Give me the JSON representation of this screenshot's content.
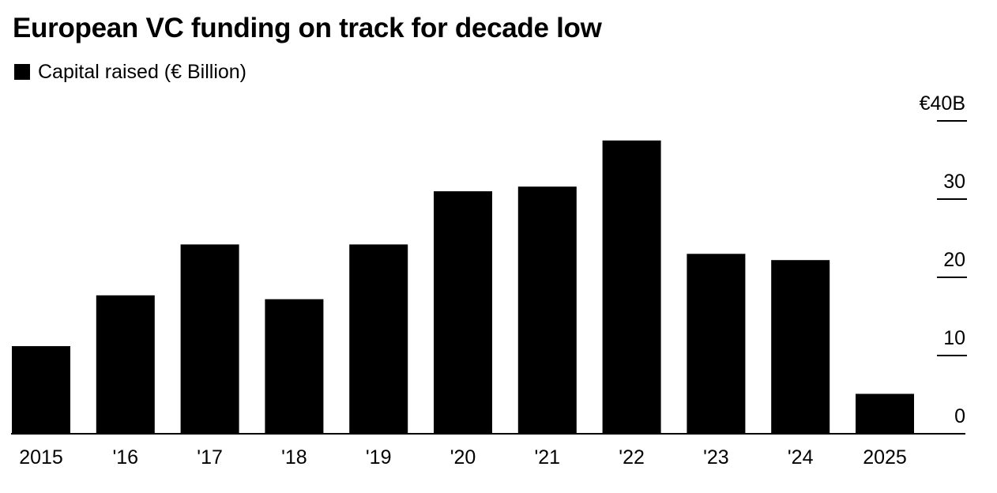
{
  "title": "European VC funding on track for decade low",
  "legend": {
    "label": "Capital raised (€ Billion)",
    "color": "#000000"
  },
  "chart_data": {
    "type": "bar",
    "title": "European VC funding on track for decade low",
    "categories": [
      "2015",
      "'16",
      "'17",
      "'18",
      "'19",
      "'20",
      "'21",
      "'22",
      "'23",
      "'24",
      "2025"
    ],
    "series": [
      {
        "name": "Capital raised (€ Billion)",
        "color": "#000000",
        "values": [
          11.2,
          17.7,
          24.2,
          17.2,
          24.2,
          31.0,
          31.6,
          37.5,
          23.0,
          22.2,
          5.1
        ]
      }
    ],
    "ylim": [
      0,
      40
    ],
    "yticks": [
      0,
      10,
      20,
      30,
      40
    ],
    "ytick_labels": [
      "0",
      "10",
      "20",
      "30",
      "€40B"
    ],
    "y_axis_side": "right",
    "grid": false,
    "legend_position": "top-left"
  }
}
